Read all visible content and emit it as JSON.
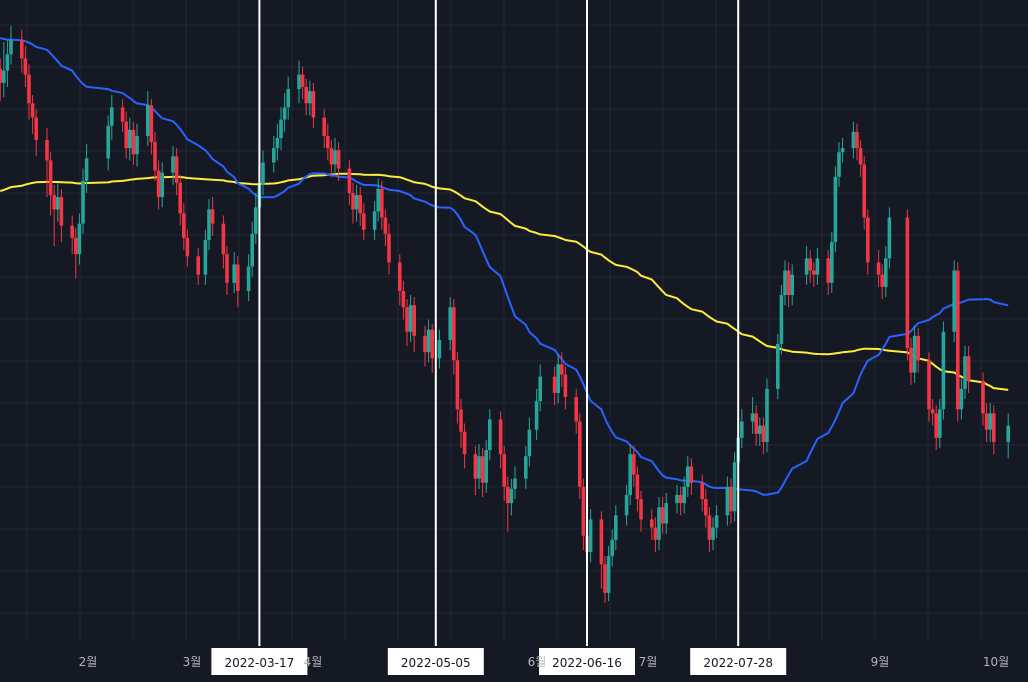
{
  "chart_data": {
    "type": "candlestick",
    "x_axis_labels": [
      "2월",
      "3월",
      "4월",
      "6월",
      "7월",
      "9월",
      "10월"
    ],
    "vertical_markers": [
      "2022-03-17",
      "2022-05-05",
      "2022-06-16",
      "2022-07-28"
    ],
    "colors": {
      "background": "#151924",
      "grid": "#232734",
      "up": "#26a69a",
      "down": "#f23645",
      "ma_short": "#2962ff",
      "ma_long": "#ffeb3b",
      "marker_line": "#ffffff",
      "axis_text": "#b2b5be"
    },
    "candles": [
      [
        "2022-01-04",
        25.5,
        24.8,
        26.0,
        23.9
      ],
      [
        "2022-01-05",
        24.8,
        25.4,
        26.8,
        24.1
      ],
      [
        "2022-01-06",
        25.4,
        26.2,
        26.9,
        24.6
      ],
      [
        "2022-01-07",
        26.2,
        26.9,
        27.6,
        25.7
      ],
      [
        "2022-01-10",
        26.9,
        26.0,
        27.4,
        25.3
      ],
      [
        "2022-01-11",
        26.0,
        25.2,
        26.6,
        24.6
      ],
      [
        "2022-01-12",
        25.2,
        23.8,
        25.7,
        23.0
      ],
      [
        "2022-01-13",
        23.8,
        23.1,
        24.2,
        22.3
      ],
      [
        "2022-01-14",
        23.1,
        22.0,
        23.5,
        21.2
      ],
      [
        "2022-01-17",
        22.0,
        21.0,
        22.6,
        19.2
      ],
      [
        "2022-01-18",
        21.0,
        19.3,
        21.4,
        18.3
      ],
      [
        "2022-01-19",
        19.3,
        18.6,
        19.8,
        16.8
      ],
      [
        "2022-01-20",
        18.6,
        19.2,
        19.9,
        18.0
      ],
      [
        "2022-01-21",
        19.2,
        17.8,
        19.6,
        17.0
      ],
      [
        "2022-01-24",
        17.8,
        17.2,
        18.3,
        16.4
      ],
      [
        "2022-01-25",
        17.2,
        16.4,
        17.7,
        15.2
      ],
      [
        "2022-01-26",
        16.4,
        17.9,
        18.4,
        15.9
      ],
      [
        "2022-01-27",
        17.9,
        20.0,
        20.6,
        17.4
      ],
      [
        "2022-01-28",
        20.0,
        21.1,
        21.8,
        19.4
      ],
      [
        "2022-02-03",
        21.1,
        22.7,
        23.2,
        20.5
      ],
      [
        "2022-02-04",
        22.7,
        23.6,
        24.2,
        22.0
      ],
      [
        "2022-02-07",
        23.6,
        22.9,
        24.0,
        22.4
      ],
      [
        "2022-02-08",
        22.9,
        21.6,
        23.4,
        21.1
      ],
      [
        "2022-02-09",
        21.6,
        22.5,
        23.1,
        21.0
      ],
      [
        "2022-02-10",
        22.5,
        21.3,
        22.9,
        20.8
      ],
      [
        "2022-02-11",
        21.3,
        22.2,
        22.8,
        20.7
      ],
      [
        "2022-02-14",
        22.2,
        23.7,
        24.4,
        21.7
      ],
      [
        "2022-02-15",
        23.7,
        21.9,
        24.0,
        21.3
      ],
      [
        "2022-02-16",
        21.9,
        20.5,
        22.4,
        20.0
      ],
      [
        "2022-02-17",
        20.5,
        19.2,
        21.0,
        18.6
      ],
      [
        "2022-02-18",
        19.2,
        20.4,
        20.9,
        18.7
      ],
      [
        "2022-02-21",
        20.4,
        21.2,
        21.7,
        19.8
      ],
      [
        "2022-02-22",
        21.2,
        19.9,
        21.6,
        19.3
      ],
      [
        "2022-02-23",
        19.9,
        18.4,
        20.3,
        17.8
      ],
      [
        "2022-02-24",
        18.4,
        17.2,
        18.9,
        16.6
      ],
      [
        "2022-02-25",
        17.2,
        16.3,
        17.6,
        15.8
      ],
      [
        "2022-02-28",
        16.3,
        15.4,
        16.7,
        14.9
      ],
      [
        "2022-03-02",
        15.4,
        17.1,
        17.6,
        14.9
      ],
      [
        "2022-03-03",
        17.1,
        18.6,
        19.1,
        16.6
      ],
      [
        "2022-03-04",
        18.6,
        17.9,
        19.2,
        17.3
      ],
      [
        "2022-03-07",
        17.9,
        16.4,
        18.3,
        15.7
      ],
      [
        "2022-03-08",
        16.4,
        15.0,
        16.8,
        14.4
      ],
      [
        "2022-03-10",
        15.0,
        15.9,
        16.5,
        14.5
      ],
      [
        "2022-03-11",
        15.9,
        14.6,
        16.3,
        13.8
      ],
      [
        "2022-03-14",
        14.6,
        15.8,
        16.4,
        14.1
      ],
      [
        "2022-03-15",
        15.8,
        17.4,
        18.0,
        15.3
      ],
      [
        "2022-03-16",
        17.4,
        18.7,
        19.4,
        16.9
      ],
      [
        "2022-03-17",
        18.7,
        19.8,
        20.5,
        18.2
      ],
      [
        "2022-03-18",
        19.8,
        20.9,
        21.5,
        19.3
      ],
      [
        "2022-03-21",
        20.9,
        21.6,
        22.2,
        20.4
      ],
      [
        "2022-03-22",
        21.6,
        22.1,
        22.8,
        21.0
      ],
      [
        "2022-03-23",
        22.1,
        23.0,
        23.6,
        21.5
      ],
      [
        "2022-03-24",
        23.0,
        23.6,
        24.3,
        22.4
      ],
      [
        "2022-03-25",
        23.6,
        24.5,
        25.1,
        23.0
      ],
      [
        "2022-03-28",
        24.5,
        25.2,
        25.9,
        23.8
      ],
      [
        "2022-03-29",
        25.2,
        24.6,
        25.6,
        24.0
      ],
      [
        "2022-03-30",
        24.6,
        23.8,
        25.0,
        23.2
      ],
      [
        "2022-03-31",
        23.8,
        24.4,
        24.9,
        23.2
      ],
      [
        "2022-04-01",
        24.4,
        23.1,
        24.8,
        22.6
      ],
      [
        "2022-04-04",
        23.1,
        22.2,
        23.5,
        21.6
      ],
      [
        "2022-04-05",
        22.2,
        21.6,
        22.8,
        21.0
      ],
      [
        "2022-04-06",
        21.6,
        20.8,
        22.0,
        20.2
      ],
      [
        "2022-04-07",
        20.8,
        21.5,
        22.1,
        20.3
      ],
      [
        "2022-04-08",
        21.5,
        20.6,
        21.9,
        20.0
      ],
      [
        "2022-04-11",
        20.6,
        19.4,
        21.0,
        18.8
      ],
      [
        "2022-04-12",
        19.4,
        18.6,
        19.9,
        17.9
      ],
      [
        "2022-04-13",
        18.6,
        19.3,
        19.8,
        18.0
      ],
      [
        "2022-04-14",
        19.3,
        18.4,
        19.7,
        17.8
      ],
      [
        "2022-04-15",
        18.4,
        17.6,
        18.9,
        17.1
      ],
      [
        "2022-04-18",
        17.6,
        18.5,
        19.0,
        17.1
      ],
      [
        "2022-04-19",
        18.5,
        19.6,
        20.1,
        18.0
      ],
      [
        "2022-04-20",
        19.6,
        18.2,
        20.0,
        17.6
      ],
      [
        "2022-04-21",
        18.2,
        17.4,
        18.6,
        16.8
      ],
      [
        "2022-04-22",
        17.4,
        16.0,
        17.9,
        15.4
      ],
      [
        "2022-04-25",
        16.0,
        14.6,
        16.4,
        13.9
      ],
      [
        "2022-04-26",
        14.6,
        13.8,
        15.1,
        13.2
      ],
      [
        "2022-04-27",
        13.8,
        12.6,
        14.2,
        11.9
      ],
      [
        "2022-04-28",
        12.6,
        13.9,
        14.4,
        12.1
      ],
      [
        "2022-04-29",
        13.9,
        12.4,
        14.3,
        11.6
      ],
      [
        "2022-05-02",
        12.4,
        11.6,
        12.9,
        10.9
      ],
      [
        "2022-05-03",
        11.6,
        12.7,
        13.2,
        11.1
      ],
      [
        "2022-05-04",
        12.7,
        11.3,
        13.0,
        10.6
      ],
      [
        "2022-05-06",
        11.3,
        12.2,
        12.7,
        10.8
      ],
      [
        "2022-05-09",
        12.2,
        13.8,
        14.3,
        11.7
      ],
      [
        "2022-05-10",
        13.8,
        11.2,
        14.2,
        10.5
      ],
      [
        "2022-05-11",
        11.2,
        8.8,
        11.6,
        8.1
      ],
      [
        "2022-05-12",
        8.8,
        7.7,
        9.3,
        6.9
      ],
      [
        "2022-05-13",
        7.7,
        6.6,
        8.1,
        5.9
      ],
      [
        "2022-05-16",
        6.6,
        5.4,
        7.0,
        4.6
      ],
      [
        "2022-05-17",
        5.4,
        6.5,
        7.1,
        4.9
      ],
      [
        "2022-05-18",
        6.5,
        5.2,
        6.9,
        4.5
      ],
      [
        "2022-05-19",
        5.2,
        6.8,
        7.3,
        4.7
      ],
      [
        "2022-05-20",
        6.8,
        8.3,
        8.8,
        6.3
      ],
      [
        "2022-05-23",
        8.3,
        6.6,
        8.7,
        5.9
      ],
      [
        "2022-05-24",
        6.6,
        5.0,
        7.0,
        4.3
      ],
      [
        "2022-05-25",
        5.0,
        4.2,
        5.5,
        2.8
      ],
      [
        "2022-05-26",
        4.2,
        4.9,
        5.4,
        3.6
      ],
      [
        "2022-05-27",
        4.9,
        5.4,
        6.0,
        4.4
      ],
      [
        "2022-05-30",
        5.4,
        6.5,
        7.0,
        4.9
      ],
      [
        "2022-05-31",
        6.5,
        7.8,
        8.4,
        6.0
      ],
      [
        "2022-06-02",
        7.8,
        9.2,
        9.8,
        7.3
      ],
      [
        "2022-06-03",
        9.2,
        10.4,
        11.0,
        8.7
      ],
      [
        "2022-06-07",
        10.4,
        9.6,
        10.9,
        9.0
      ],
      [
        "2022-06-08",
        9.6,
        11.0,
        11.5,
        9.1
      ],
      [
        "2022-06-09",
        11.0,
        10.5,
        11.6,
        9.9
      ],
      [
        "2022-06-10",
        10.5,
        9.4,
        10.9,
        8.8
      ],
      [
        "2022-06-13",
        9.4,
        8.2,
        9.8,
        7.6
      ],
      [
        "2022-06-14",
        8.2,
        5.0,
        8.6,
        4.4
      ],
      [
        "2022-06-15",
        5.0,
        2.6,
        5.4,
        1.9
      ],
      [
        "2022-06-16",
        2.6,
        1.8,
        3.1,
        0.6
      ],
      [
        "2022-06-17",
        1.8,
        3.4,
        3.9,
        1.3
      ],
      [
        "2022-06-20",
        3.4,
        1.2,
        3.8,
        0.0
      ],
      [
        "2022-06-21",
        1.2,
        -0.2,
        1.6,
        -0.7
      ],
      [
        "2022-06-22",
        -0.2,
        1.6,
        2.1,
        -0.6
      ],
      [
        "2022-06-23",
        1.6,
        2.4,
        2.9,
        1.1
      ],
      [
        "2022-06-24",
        2.4,
        3.6,
        4.1,
        1.9
      ],
      [
        "2022-06-27",
        3.6,
        4.6,
        5.1,
        3.1
      ],
      [
        "2022-06-28",
        4.6,
        6.6,
        7.1,
        4.1
      ],
      [
        "2022-06-29",
        6.6,
        5.6,
        7.0,
        5.0
      ],
      [
        "2022-06-30",
        5.6,
        4.4,
        6.0,
        3.8
      ],
      [
        "2022-07-01",
        4.4,
        3.4,
        4.8,
        2.8
      ],
      [
        "2022-07-04",
        3.4,
        3.0,
        3.9,
        2.4
      ],
      [
        "2022-07-05",
        3.0,
        2.4,
        3.5,
        1.8
      ],
      [
        "2022-07-06",
        2.4,
        4.0,
        4.5,
        1.9
      ],
      [
        "2022-07-07",
        4.0,
        3.2,
        4.5,
        2.7
      ],
      [
        "2022-07-08",
        3.2,
        4.2,
        4.7,
        2.7
      ],
      [
        "2022-07-11",
        4.2,
        4.6,
        5.1,
        3.7
      ],
      [
        "2022-07-12",
        4.6,
        4.2,
        5.0,
        3.6
      ],
      [
        "2022-07-13",
        4.2,
        5.0,
        5.5,
        3.7
      ],
      [
        "2022-07-14",
        5.0,
        6.0,
        6.5,
        4.5
      ],
      [
        "2022-07-15",
        6.0,
        5.2,
        6.4,
        4.6
      ],
      [
        "2022-07-18",
        5.2,
        4.4,
        5.6,
        3.8
      ],
      [
        "2022-07-19",
        4.4,
        3.6,
        4.9,
        3.0
      ],
      [
        "2022-07-20",
        3.6,
        2.4,
        4.0,
        1.8
      ],
      [
        "2022-07-21",
        2.4,
        3.0,
        3.5,
        1.9
      ],
      [
        "2022-07-22",
        3.0,
        3.6,
        4.1,
        2.5
      ],
      [
        "2022-07-25",
        3.6,
        5.0,
        5.5,
        3.1
      ],
      [
        "2022-07-26",
        5.0,
        3.8,
        5.4,
        3.2
      ],
      [
        "2022-07-27",
        3.8,
        6.2,
        6.7,
        3.3
      ],
      [
        "2022-07-28",
        6.2,
        7.4,
        7.9,
        5.7
      ],
      [
        "2022-07-29",
        7.4,
        8.2,
        8.8,
        6.9
      ],
      [
        "2022-08-01",
        8.2,
        8.6,
        9.4,
        7.6
      ],
      [
        "2022-08-02",
        8.6,
        7.6,
        9.0,
        7.0
      ],
      [
        "2022-08-03",
        7.6,
        8.0,
        8.4,
        7.0
      ],
      [
        "2022-08-04",
        8.0,
        7.2,
        8.4,
        6.6
      ],
      [
        "2022-08-05",
        7.2,
        9.8,
        10.3,
        6.7
      ],
      [
        "2022-08-08",
        9.8,
        12.0,
        12.5,
        9.3
      ],
      [
        "2022-08-09",
        12.0,
        14.4,
        14.9,
        11.5
      ],
      [
        "2022-08-10",
        14.4,
        15.6,
        16.1,
        13.9
      ],
      [
        "2022-08-11",
        15.6,
        14.4,
        16.0,
        13.8
      ],
      [
        "2022-08-12",
        14.4,
        15.4,
        15.9,
        13.9
      ],
      [
        "2022-08-16",
        15.4,
        16.2,
        16.8,
        14.9
      ],
      [
        "2022-08-17",
        16.2,
        15.6,
        16.6,
        15.0
      ],
      [
        "2022-08-18",
        15.6,
        15.4,
        16.0,
        14.8
      ],
      [
        "2022-08-19",
        15.4,
        16.2,
        16.7,
        14.9
      ],
      [
        "2022-08-22",
        16.2,
        15.0,
        16.6,
        14.4
      ],
      [
        "2022-08-23",
        15.0,
        17.0,
        17.5,
        14.5
      ],
      [
        "2022-08-24",
        17.0,
        20.2,
        20.7,
        16.5
      ],
      [
        "2022-08-25",
        20.2,
        21.4,
        21.9,
        19.7
      ],
      [
        "2022-08-26",
        21.4,
        21.6,
        22.1,
        20.9
      ],
      [
        "2022-08-29",
        21.6,
        22.4,
        22.9,
        21.1
      ],
      [
        "2022-08-30",
        22.4,
        21.6,
        22.8,
        21.0
      ],
      [
        "2022-08-31",
        21.6,
        20.8,
        22.0,
        20.2
      ],
      [
        "2022-09-01",
        20.8,
        18.2,
        21.2,
        17.6
      ],
      [
        "2022-09-02",
        18.2,
        16.0,
        18.6,
        15.4
      ],
      [
        "2022-09-05",
        16.0,
        15.4,
        16.6,
        14.8
      ],
      [
        "2022-09-06",
        15.4,
        14.8,
        15.9,
        14.2
      ],
      [
        "2022-09-07",
        14.8,
        16.2,
        16.8,
        14.3
      ],
      [
        "2022-09-08",
        16.2,
        18.2,
        18.7,
        15.7
      ],
      [
        "2022-09-13",
        18.2,
        11.8,
        18.6,
        11.2
      ],
      [
        "2022-09-14",
        11.8,
        10.6,
        12.3,
        10.0
      ],
      [
        "2022-09-15",
        10.6,
        12.4,
        12.9,
        10.1
      ],
      [
        "2022-09-16",
        12.4,
        11.2,
        12.8,
        10.6
      ],
      [
        "2022-09-19",
        11.2,
        8.8,
        11.6,
        8.2
      ],
      [
        "2022-09-20",
        8.8,
        8.6,
        9.3,
        8.0
      ],
      [
        "2022-09-21",
        8.6,
        7.4,
        9.0,
        6.8
      ],
      [
        "2022-09-22",
        7.4,
        8.8,
        9.3,
        6.9
      ],
      [
        "2022-09-23",
        8.8,
        12.6,
        13.1,
        8.3
      ],
      [
        "2022-09-26",
        12.6,
        15.6,
        16.1,
        12.1
      ],
      [
        "2022-09-27",
        15.6,
        8.8,
        16.0,
        8.2
      ],
      [
        "2022-09-28",
        8.8,
        9.8,
        10.3,
        8.3
      ],
      [
        "2022-09-29",
        9.8,
        11.4,
        11.9,
        9.3
      ],
      [
        "2022-09-30",
        11.4,
        10.2,
        11.9,
        9.6
      ],
      [
        "2022-10-04",
        10.2,
        8.6,
        10.6,
        8.0
      ],
      [
        "2022-10-05",
        8.6,
        7.8,
        9.1,
        7.2
      ],
      [
        "2022-10-06",
        7.8,
        8.6,
        9.1,
        7.2
      ],
      [
        "2022-10-07",
        8.6,
        7.2,
        9.0,
        6.6
      ],
      [
        "2022-10-11",
        7.2,
        8.0,
        8.6,
        6.4
      ]
    ]
  }
}
